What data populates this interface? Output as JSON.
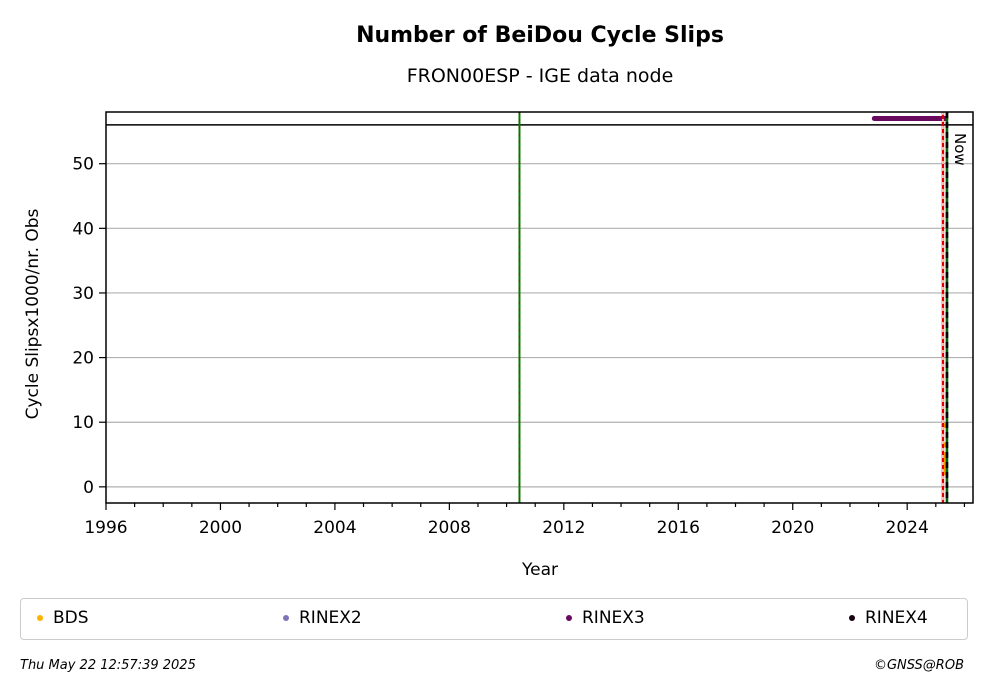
{
  "chart_data": {
    "type": "scatter",
    "title": "Number of BeiDou Cycle Slips",
    "subtitle": "FRON00ESP - IGE data node",
    "xlabel": "Year",
    "ylabel": "Cycle Slipsx1000/nr. Obs",
    "xlim": [
      1996.0,
      2026.3
    ],
    "ylim": [
      -2.5,
      58.0
    ],
    "x_ticks": [
      1996,
      2000,
      2004,
      2008,
      2012,
      2016,
      2020,
      2024
    ],
    "y_ticks": [
      0,
      10,
      20,
      30,
      40,
      50
    ],
    "grid": "y",
    "reference_line_y": 56,
    "vertical_lines": [
      {
        "x": 2010.45,
        "style": "green-red-dashed"
      },
      {
        "x": 2025.25,
        "style": "red-white-dashed"
      },
      {
        "x": 2025.39,
        "style": "black-green-dashed",
        "label": "Now"
      }
    ],
    "series": [
      {
        "name": "BDS",
        "color": "#ffb000",
        "x": [
          2025.28,
          2025.29,
          2025.3,
          2025.31,
          2025.32,
          2025.33,
          2025.3,
          2025.31,
          2025.29,
          2025.32,
          2025.33,
          2025.3
        ],
        "y": [
          9.5,
          6.5,
          5.0,
          4.5,
          4.0,
          3.5,
          3.0,
          2.5,
          2.2,
          3.2,
          2.8,
          4.2
        ]
      },
      {
        "name": "RINEX2",
        "color": "#8074b8",
        "x": [],
        "y": []
      },
      {
        "name": "RINEX3",
        "color": "#6a0a5e",
        "x_range": [
          2022.85,
          2025.35
        ],
        "y_value": 57.0
      },
      {
        "name": "RINEX4",
        "color": "#1a0010",
        "x": [],
        "y": []
      }
    ]
  },
  "footer": {
    "timestamp": "Thu May 22 12:57:39 2025",
    "credit": "©GNSS@ROB"
  }
}
